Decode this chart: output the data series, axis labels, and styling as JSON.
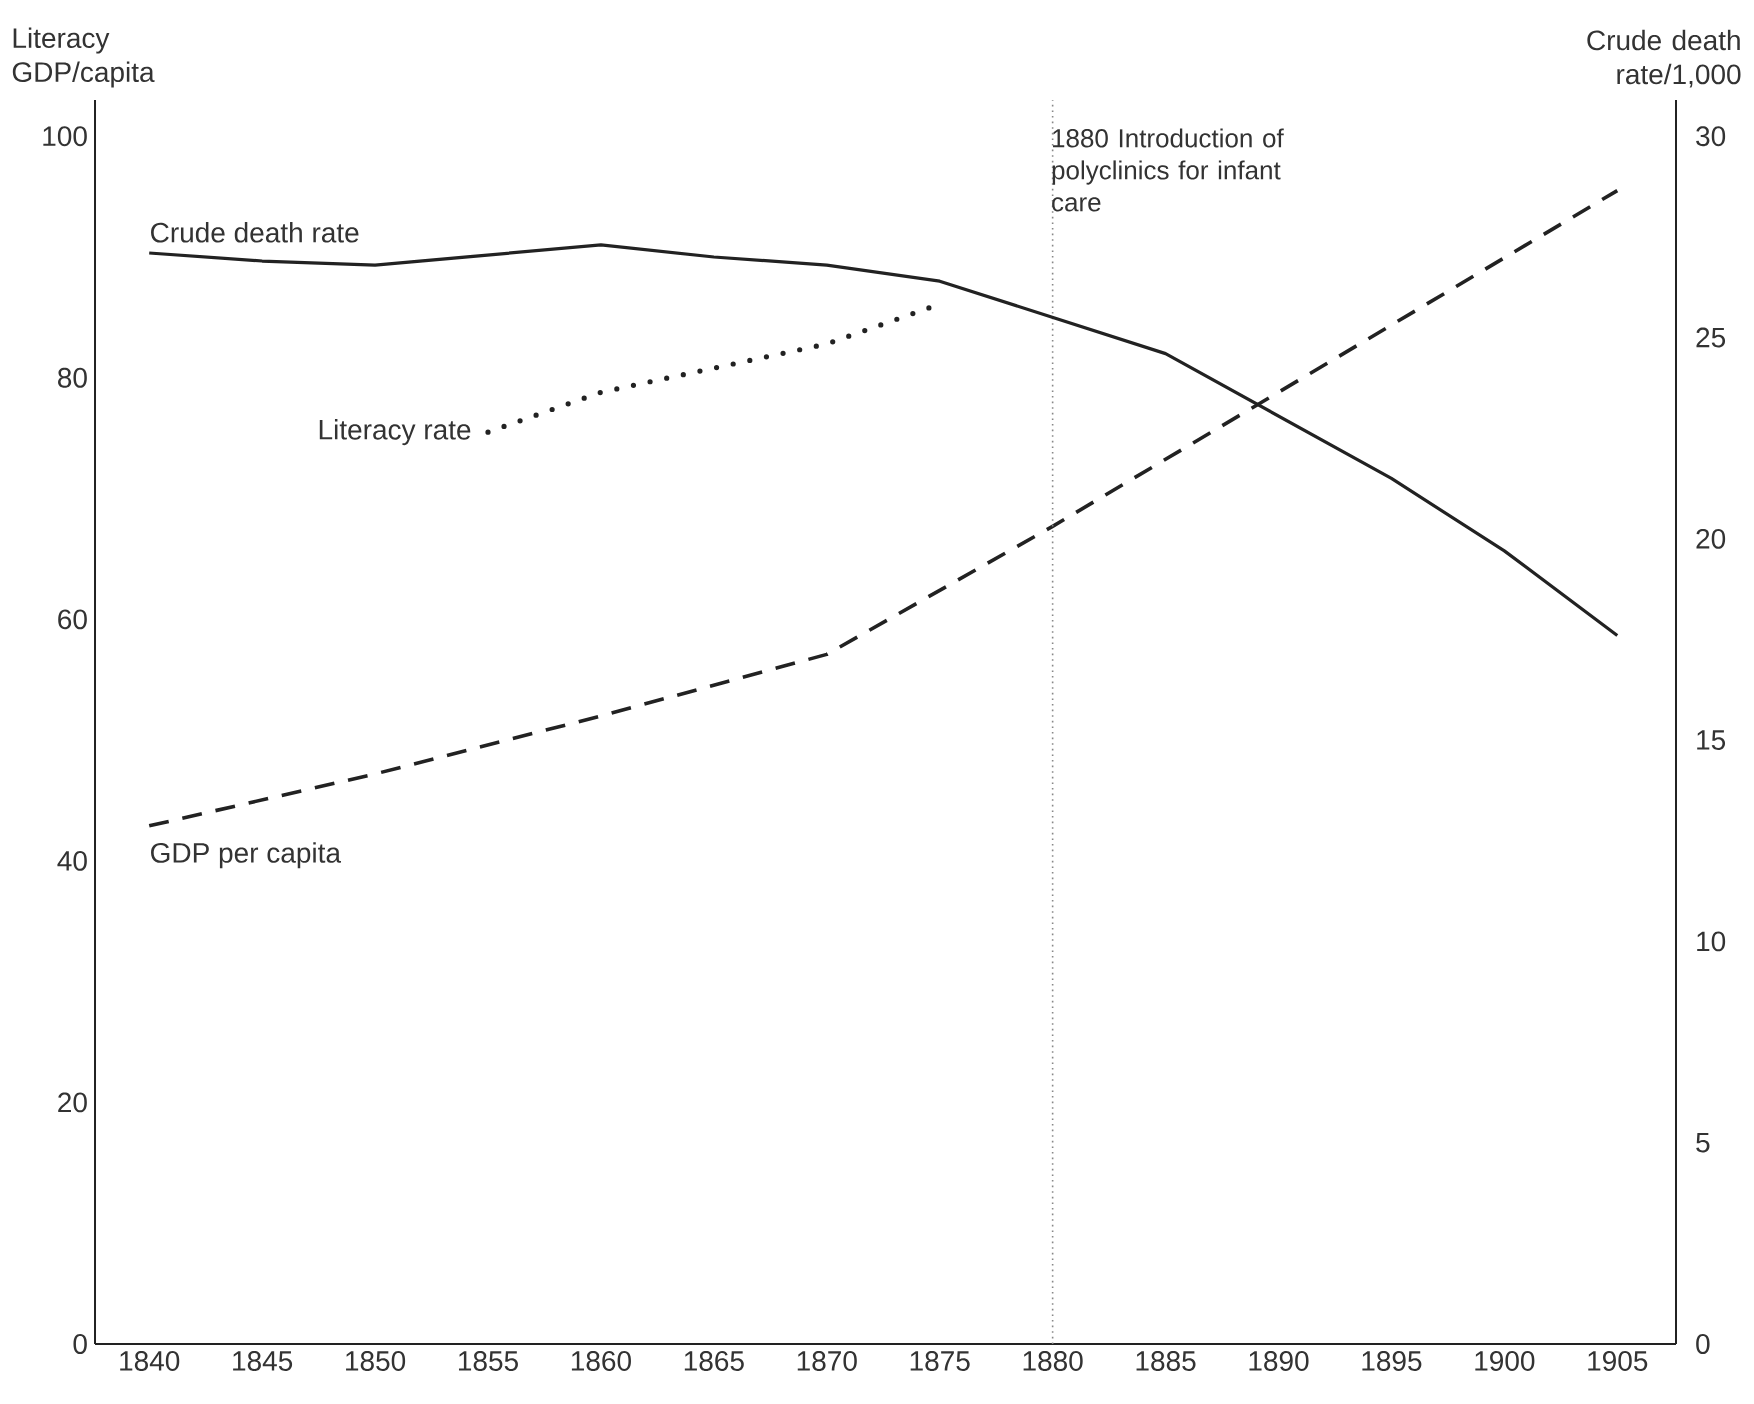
{
  "chart_data": {
    "type": "line",
    "xlabel": null,
    "ylabel": "Literacy GDP/capita",
    "y2label": "Crude death rate/1,000",
    "xlim": [
      1837.6,
      1907.6
    ],
    "xticks": [
      1840,
      1845,
      1850,
      1855,
      1860,
      1865,
      1870,
      1875,
      1880,
      1885,
      1890,
      1895,
      1900,
      1905
    ],
    "ylim": [
      0,
      103
    ],
    "yticks": [
      0,
      20,
      40,
      60,
      80,
      100
    ],
    "y2lim": [
      0,
      30.9
    ],
    "y2ticks": [
      0,
      5,
      10,
      15,
      20,
      25,
      30
    ],
    "series": [
      {
        "name": "Crude death rate",
        "color": "#222222",
        "axis": "y2",
        "line_style": "solid",
        "x": [
          1840,
          1845,
          1850,
          1860,
          1865,
          1870,
          1875,
          1885,
          1895,
          1900,
          1905
        ],
        "values": [
          27.1,
          26.9,
          26.8,
          27.3,
          27.0,
          26.8,
          26.4,
          24.6,
          21.5,
          19.7,
          17.6
        ]
      },
      {
        "name": "Literacy rate",
        "color": "#222222",
        "line_style": "dotted",
        "x": [
          1855,
          1860,
          1870,
          1875
        ],
        "values": [
          75.5,
          78.8,
          82.8,
          86.1
        ]
      },
      {
        "name": "GDP per capita",
        "color": "#222222",
        "line_style": "dashed",
        "x": [
          1840,
          1850,
          1860,
          1870,
          1880,
          1890,
          1905
        ],
        "values": [
          42.9,
          47.2,
          52.0,
          57.1,
          67.7,
          78.8,
          95.5
        ]
      }
    ],
    "ref_lines": [
      {
        "axis": "x",
        "value": 1880,
        "label": "1880 Introduction of polyclinics for infant care",
        "color": "#888888",
        "line_style": "dotted"
      }
    ]
  }
}
